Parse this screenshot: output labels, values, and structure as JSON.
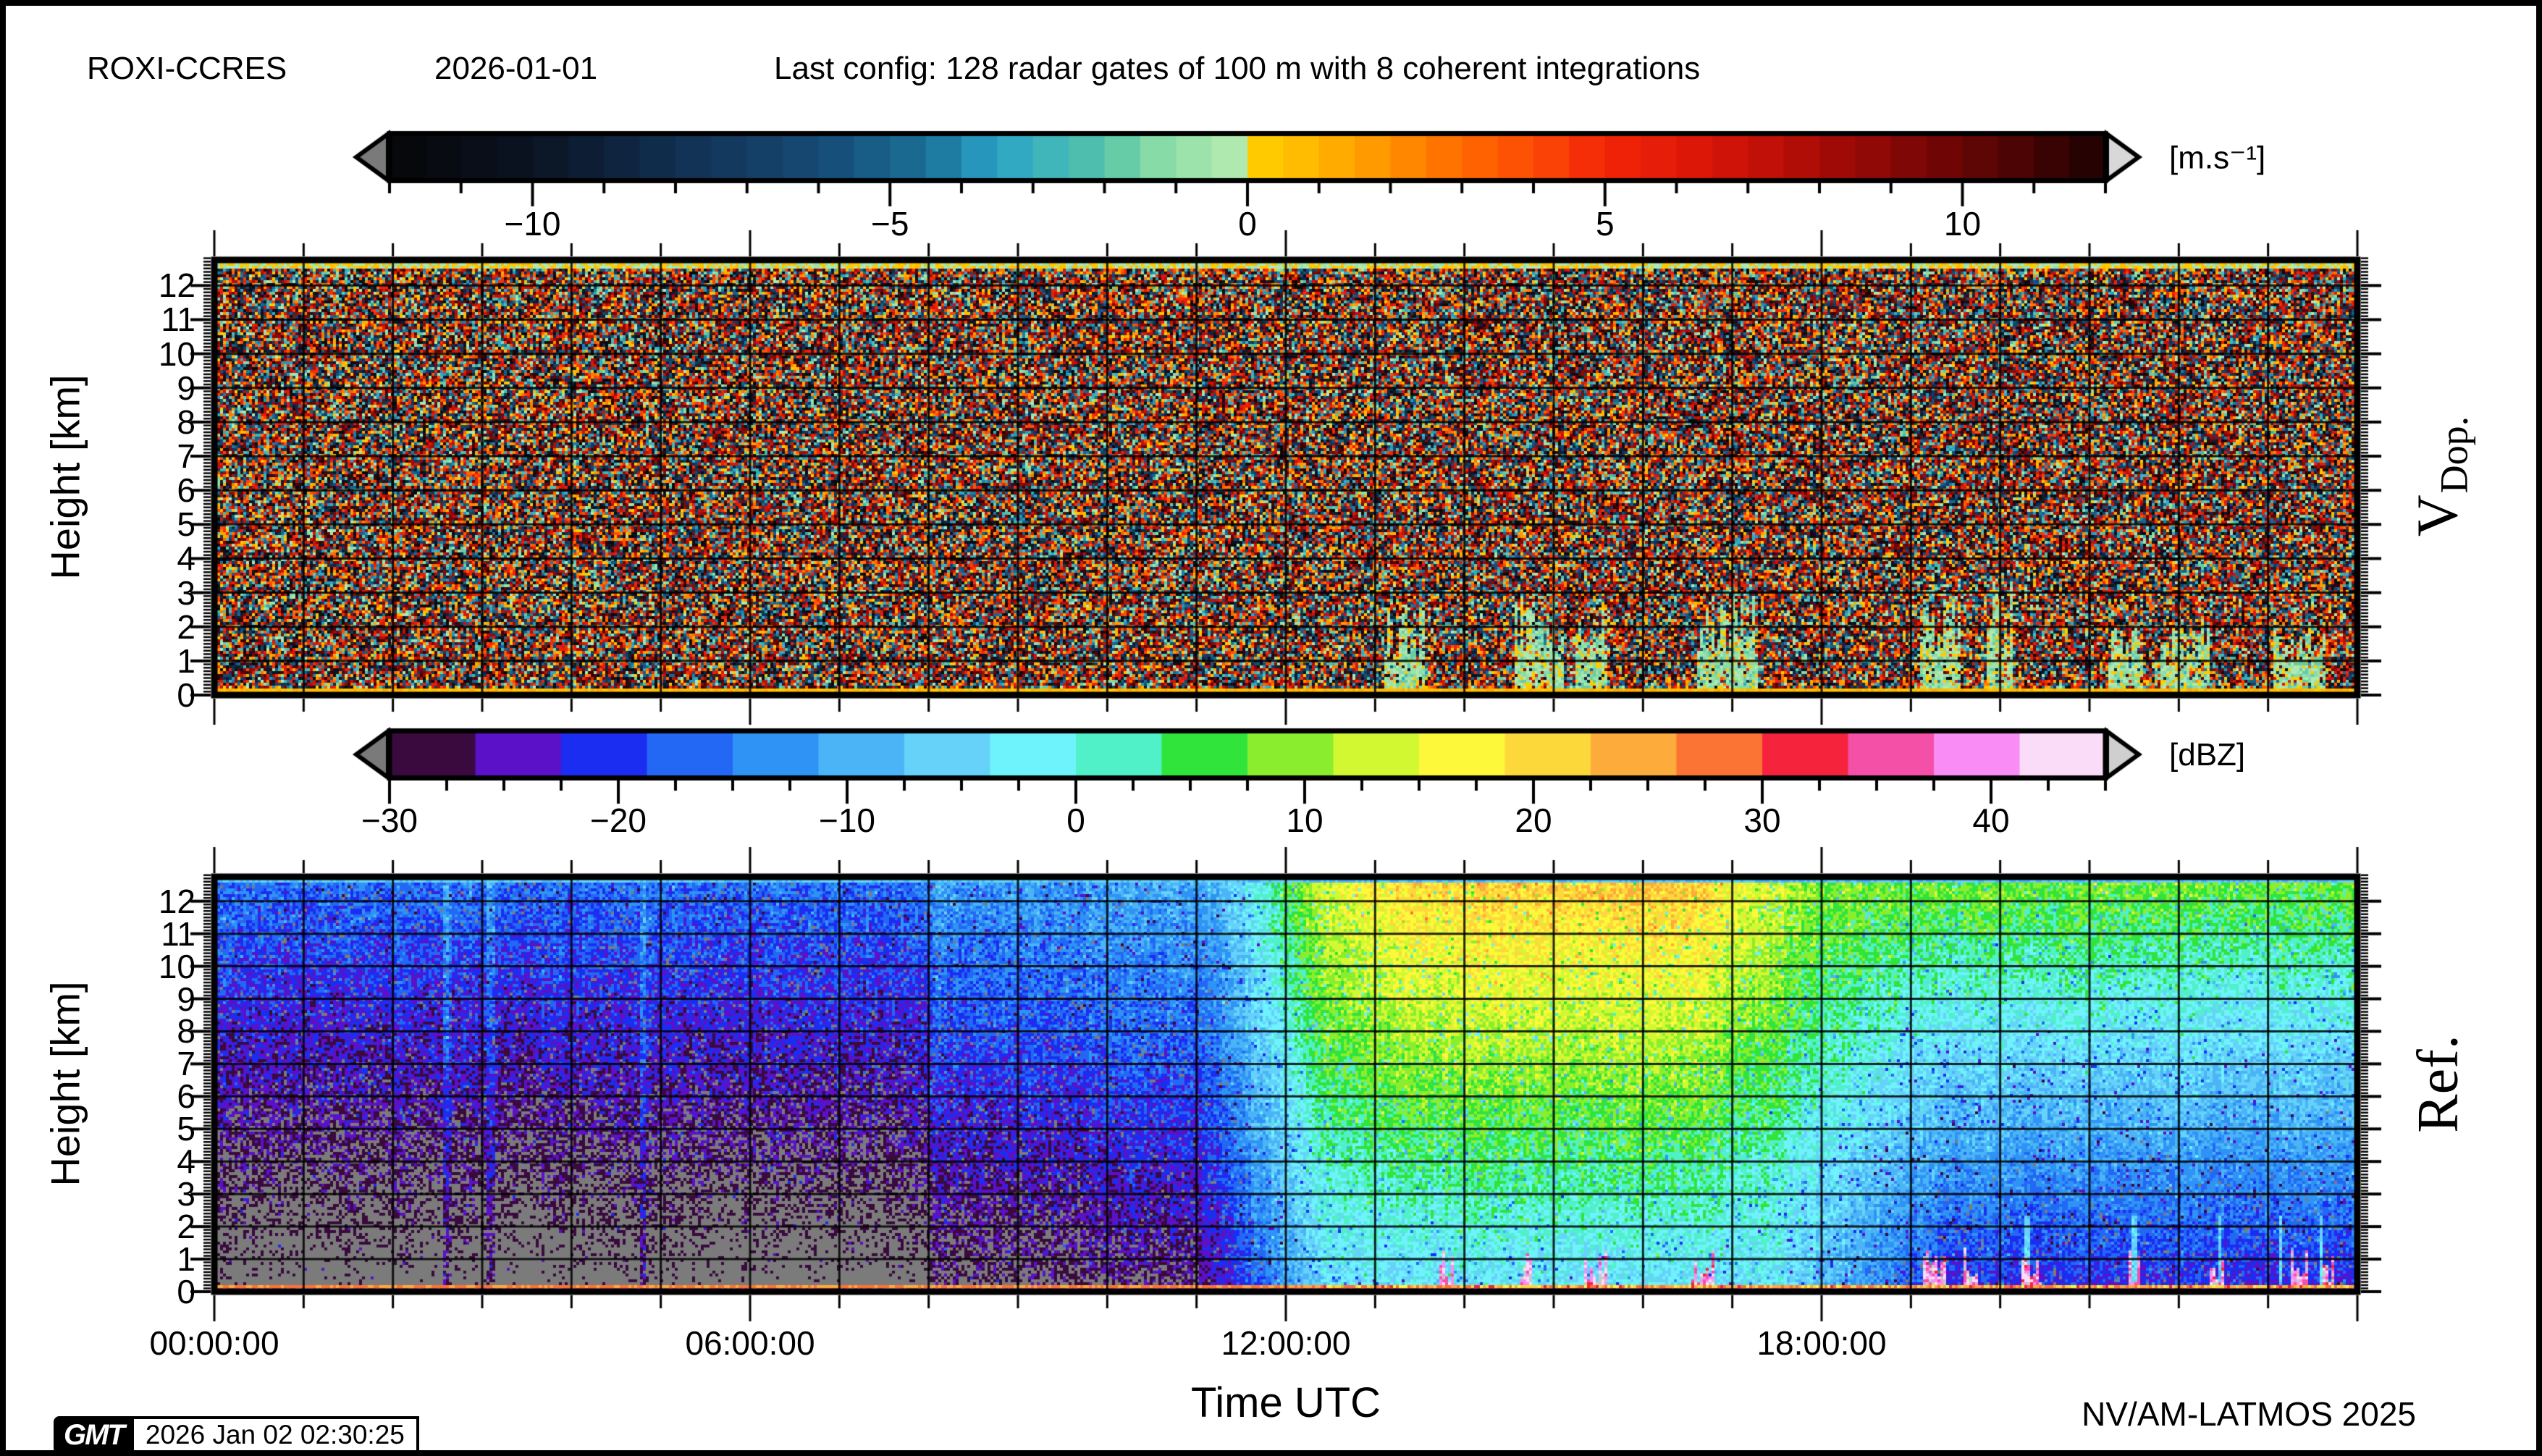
{
  "header": {
    "station": "ROXI-CCRES",
    "date": "2026-01-01",
    "config": "Last config: 128 radar gates of 100 m with 8 coherent integrations"
  },
  "footer": {
    "credit": "NV/AM-LATMOS 2025",
    "logo_text": "GMT",
    "render_timestamp": "2026 Jan 02 02:30:25"
  },
  "time_axis": {
    "label": "Time UTC",
    "span_hours": [
      0,
      24
    ],
    "tick_hours": [
      0,
      6,
      12,
      18
    ],
    "tick_labels": [
      "00:00:00",
      "06:00:00",
      "12:00:00",
      "18:00:00"
    ],
    "minor_step_hours": 1
  },
  "height_axis": {
    "label": "Height [km]",
    "range_km": [
      0,
      12.75
    ],
    "ticks": [
      0,
      1,
      2,
      3,
      4,
      5,
      6,
      7,
      8,
      9,
      10,
      11,
      12
    ],
    "minor_step_km": 0.1
  },
  "panels": {
    "velocity": {
      "side_label_main": "V",
      "side_label_sub": "Dop."
    },
    "reflectivity": {
      "side_label_main": "Ref.",
      "side_label_sub": ""
    }
  },
  "chart_data": [
    {
      "type": "heatmap",
      "name": "doppler-velocity",
      "units": "[m.s⁻¹]",
      "ylabel": "Height [km]",
      "value_range": [
        -12,
        12
      ],
      "height_range_km": [
        0,
        12.75
      ],
      "time_range_hours": [
        0,
        24
      ],
      "grid": "on, 1 km horizontal / 1 h vertical black lines",
      "colorbar": {
        "position": "top",
        "labeled_ticks": [
          -10,
          -5,
          0,
          5,
          10
        ],
        "minor_tick_step": 1,
        "cell_step": 0.5,
        "arrow_left_color": "#7a7a7a",
        "arrow_right_color": "#d8d8d8",
        "anchors": [
          [
            -12,
            "#060609"
          ],
          [
            -10,
            "#0b1322"
          ],
          [
            -8,
            "#113051"
          ],
          [
            -6,
            "#154a74"
          ],
          [
            -4.5,
            "#1a6f96"
          ],
          [
            -3.5,
            "#2ba3c8"
          ],
          [
            -2.8,
            "#3fb4bb"
          ],
          [
            -2,
            "#55c4a8"
          ],
          [
            -1.2,
            "#8adca6"
          ],
          [
            -0.01,
            "#b9ecb2"
          ],
          [
            0,
            "#ffd300"
          ],
          [
            1,
            "#ffb400"
          ],
          [
            2,
            "#ff9100"
          ],
          [
            3,
            "#ff6a00"
          ],
          [
            4,
            "#fc4a05"
          ],
          [
            5,
            "#f32508"
          ],
          [
            6.5,
            "#d81408"
          ],
          [
            8,
            "#a80b06"
          ],
          [
            10,
            "#670505"
          ],
          [
            12,
            "#1e0202"
          ]
        ]
      },
      "content": {
        "description": "Uniform random speckle over the full ±12 m/s range (no coherent signal aloft); pale teal-green precipitation patches with velocity ≈ -1.8…0.4 m/s below ~2.5 km after 13:00 UTC; yellow-green stripe along panel top; yellow ground-clutter stripe at 0 km.",
        "top_stripe_vel_range": [
          -0.8,
          0.8
        ],
        "ground_stripe_vel_range": [
          0.3,
          1.2
        ],
        "precip_patch_vel_range": [
          -1.8,
          0.4
        ],
        "precip_events_hours": [
          [
            13.1,
            13.55,
            2.3
          ],
          [
            14.55,
            15.1,
            2.6
          ],
          [
            15.25,
            15.6,
            2.4
          ],
          [
            16.6,
            17.3,
            2.5
          ],
          [
            19.1,
            19.55,
            2.6
          ],
          [
            19.85,
            20.15,
            2.8
          ],
          [
            21.2,
            21.6,
            1.8
          ],
          [
            21.8,
            22.35,
            2.0
          ],
          [
            23.05,
            23.65,
            1.9
          ]
        ]
      }
    },
    {
      "type": "heatmap",
      "name": "reflectivity",
      "units": "[dBZ]",
      "ylabel": "Height [km]",
      "value_range": [
        -30,
        45
      ],
      "height_range_km": [
        0,
        12.75
      ],
      "time_range_hours": [
        0,
        24
      ],
      "grid": "on, 1 km horizontal / 1 h vertical black lines",
      "colorbar": {
        "position": "top",
        "labeled_ticks": [
          -30,
          -20,
          -10,
          0,
          10,
          20,
          30,
          40
        ],
        "minor_tick_step": 2.5,
        "cell_step": 3.75,
        "arrow_left_color": "#7a7a7a",
        "arrow_right_color": "#cfcfcf",
        "cells": [
          "#3a0a3f",
          "#5a11c8",
          "#1c2df2",
          "#2368f5",
          "#2f93f5",
          "#4ab4f7",
          "#66d2fa",
          "#6ef2fc",
          "#50f0c8",
          "#30e43c",
          "#8aee2e",
          "#d2f832",
          "#fdf83a",
          "#fdd83a",
          "#fdab3a",
          "#fb7433",
          "#f5233c",
          "#f550a8",
          "#f98df5",
          "#fbdcf8"
        ],
        "below_range_color": "#7b7b7b",
        "above_range_color": "#c9c9c9"
      },
      "content": {
        "description": "Range-dependent noise floor (gray < -30 dBZ near ground, blue/purple speckle aloft) until ~11:00; noise brightens 08:00-11:00; stratiform echo 12:30-24:00 with yellow-orange tops (~20-25 dBZ) 13:30-17:00 fading to green (~8 dBZ) after 18:00, cyan mid-levels and blue/gray low levels; salmon ground-clutter line near 0.15 km, pink line at 0 km; gray-cored precipitation spikes with pink/red edges below ~1.3 km after 13:30; faint bright vertical streaks.",
        "noise_floor_dbz_bottom_top": [
          -35,
          -16
        ],
        "noise_boost_hours": [
          [
            8,
            11,
            4
          ],
          [
            9.75,
            11,
            2
          ]
        ],
        "echo_top_dbz_keyframes": [
          [
            11,
            -12
          ],
          [
            12.5,
            15
          ],
          [
            13.5,
            21
          ],
          [
            16.5,
            22
          ],
          [
            18,
            9
          ],
          [
            24,
            8
          ]
        ],
        "echo_bottom_dbz_keyframes": [
          [
            11,
            -28
          ],
          [
            12.5,
            -4
          ],
          [
            17.5,
            -4
          ],
          [
            19.5,
            -22
          ],
          [
            24,
            -22
          ]
        ],
        "top_stripe_dbz": -7,
        "clutter_line_dbz": 26.5,
        "clutter_base_dbz": 37,
        "spike_events_hours": [
          [
            13.72,
            13.88
          ],
          [
            14.62,
            14.75
          ],
          [
            15.35,
            15.6
          ],
          [
            16.55,
            16.8
          ],
          [
            19.15,
            19.4
          ],
          [
            19.6,
            19.75
          ],
          [
            20.25,
            20.45
          ],
          [
            21.45,
            21.6
          ],
          [
            22.35,
            22.5
          ],
          [
            23.25,
            23.45
          ],
          [
            23.6,
            23.75
          ]
        ],
        "faint_streak_hours": [
          2.6,
          3.1,
          4.8
        ],
        "cyan_streak_hours": [
          20.3,
          21.5,
          22.45,
          23.15,
          23.6
        ]
      }
    }
  ]
}
